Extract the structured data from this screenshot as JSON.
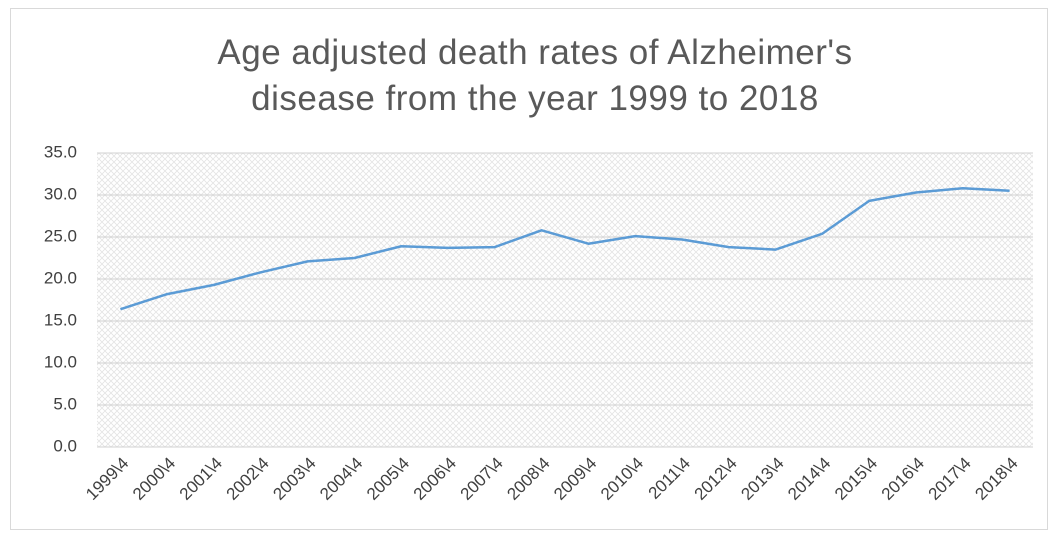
{
  "chart_data": {
    "type": "line",
    "title": "Age adjusted death rates of Alzheimer's disease from the year 1999 to 2018",
    "categories": [
      "1999\\4",
      "2000\\4",
      "2001\\4",
      "2002\\4",
      "2003\\4",
      "2004\\4",
      "2005\\4",
      "2006\\4",
      "2007\\4",
      "2008\\4",
      "2009\\4",
      "2010\\4",
      "2011\\4",
      "2012\\4",
      "2013\\4",
      "2014\\4",
      "2015\\4",
      "2016\\4",
      "2017\\4",
      "2018\\4"
    ],
    "values": [
      16.4,
      18.2,
      19.3,
      20.8,
      22.1,
      22.5,
      23.9,
      23.7,
      23.8,
      25.8,
      24.2,
      25.1,
      24.7,
      23.8,
      23.5,
      25.4,
      29.3,
      30.3,
      30.8,
      30.5
    ],
    "color": "#5b9bd5",
    "ylim": [
      0,
      35
    ],
    "yticks": [
      {
        "value": 0,
        "label": "0.0"
      },
      {
        "value": 5,
        "label": "5.0"
      },
      {
        "value": 10,
        "label": "10.0"
      },
      {
        "value": 15,
        "label": "15.0"
      },
      {
        "value": 20,
        "label": "20.0"
      },
      {
        "value": 25,
        "label": "25.0"
      },
      {
        "value": 30,
        "label": "30.0"
      },
      {
        "value": 35,
        "label": "35.0"
      }
    ],
    "grid": true
  }
}
